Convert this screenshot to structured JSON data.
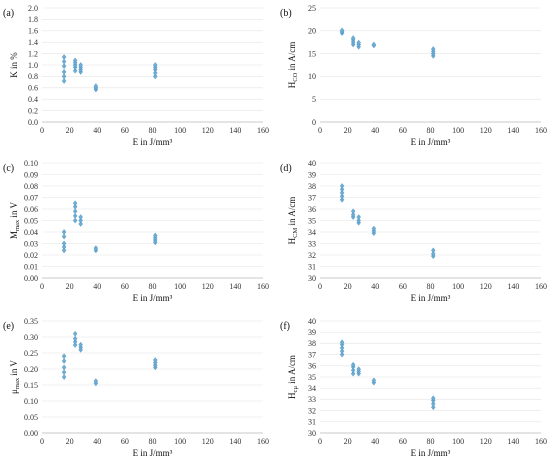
{
  "colors": {
    "marker": "#6baed6",
    "marker_dark": "#3f7fb0",
    "grid": "#e3e3e3"
  },
  "chart_data": [
    {
      "id": "a",
      "type": "scatter",
      "panel_label": "(a)",
      "xlabel": "E in J/mm³",
      "ylabel": [
        {
          "t": "K in %"
        }
      ],
      "xlim": [
        0,
        160
      ],
      "xticks": [
        0,
        20,
        40,
        60,
        80,
        100,
        120,
        140,
        160
      ],
      "xtick_labels": [
        "0",
        "20",
        "40",
        "60",
        "80",
        "100",
        "120",
        "140",
        "160"
      ],
      "ylim": [
        0,
        2.0
      ],
      "yticks": [
        0,
        0.2,
        0.4,
        0.6,
        0.8,
        1.0,
        1.2,
        1.4,
        1.6,
        1.8,
        2.0
      ],
      "ytick_labels": [
        "0.0",
        "0.2",
        "0.4",
        "0.6",
        "0.8",
        "1.0",
        "1.2",
        "1.4",
        "1.6",
        "1.8",
        "2.0"
      ],
      "x": [
        16,
        16,
        16,
        16,
        16,
        16,
        24,
        24,
        24,
        24,
        24,
        28,
        28,
        28,
        28,
        39,
        39,
        39,
        82,
        82,
        82,
        82,
        82
      ],
      "y": [
        0.72,
        0.8,
        0.88,
        0.98,
        1.06,
        1.14,
        0.9,
        0.96,
        1.0,
        1.04,
        1.08,
        0.88,
        0.92,
        0.96,
        1.0,
        0.57,
        0.6,
        0.63,
        0.8,
        0.86,
        0.92,
        0.96,
        1.0
      ]
    },
    {
      "id": "b",
      "type": "scatter",
      "panel_label": "(b)",
      "xlabel": "E in J/mm³",
      "ylabel": [
        {
          "t": "H"
        },
        {
          "t": "CO",
          "sub": true
        },
        {
          "t": " in A/cm"
        }
      ],
      "xlim": [
        0,
        160
      ],
      "xticks": [
        0,
        20,
        40,
        60,
        80,
        100,
        120,
        140,
        160
      ],
      "xtick_labels": [
        "0",
        "20",
        "40",
        "60",
        "80",
        "100",
        "120",
        "140",
        "160"
      ],
      "ylim": [
        0,
        25
      ],
      "yticks": [
        0,
        5,
        10,
        15,
        20,
        25
      ],
      "ytick_labels": [
        "0",
        "5",
        "10",
        "15",
        "20",
        "25"
      ],
      "x": [
        16,
        16,
        16,
        24,
        24,
        24,
        24,
        28,
        28,
        28,
        39,
        39,
        82,
        82,
        82,
        82
      ],
      "y": [
        19.5,
        19.8,
        20.1,
        17.0,
        17.5,
        18.0,
        18.4,
        16.5,
        17.0,
        17.4,
        16.8,
        17.0,
        14.5,
        15.0,
        15.5,
        16.0
      ]
    },
    {
      "id": "c",
      "type": "scatter",
      "panel_label": "(c)",
      "xlabel": "E in J/mm³",
      "ylabel": [
        {
          "t": "M"
        },
        {
          "t": "max",
          "sub": true
        },
        {
          "t": " in V"
        }
      ],
      "xlim": [
        0,
        160
      ],
      "xticks": [
        0,
        20,
        40,
        60,
        80,
        100,
        120,
        140,
        160
      ],
      "xtick_labels": [
        "0",
        "20",
        "40",
        "60",
        "80",
        "100",
        "120",
        "140",
        "160"
      ],
      "ylim": [
        0,
        0.1
      ],
      "yticks": [
        0,
        0.01,
        0.02,
        0.03,
        0.04,
        0.05,
        0.06,
        0.07,
        0.08,
        0.09,
        0.1
      ],
      "ytick_labels": [
        "0.00",
        "0.01",
        "0.02",
        "0.03",
        "0.04",
        "0.05",
        "0.06",
        "0.07",
        "0.08",
        "0.09",
        "0.10"
      ],
      "x": [
        16,
        16,
        16,
        16,
        16,
        24,
        24,
        24,
        24,
        24,
        28,
        28,
        28,
        39,
        39,
        82,
        82,
        82,
        82
      ],
      "y": [
        0.024,
        0.027,
        0.03,
        0.036,
        0.04,
        0.05,
        0.054,
        0.058,
        0.062,
        0.065,
        0.047,
        0.05,
        0.053,
        0.024,
        0.026,
        0.031,
        0.033,
        0.035,
        0.037
      ]
    },
    {
      "id": "d",
      "type": "scatter",
      "panel_label": "(d)",
      "xlabel": "E in J/mm³",
      "ylabel": [
        {
          "t": "H"
        },
        {
          "t": "CM",
          "sub": true
        },
        {
          "t": " in A/cm"
        }
      ],
      "xlim": [
        0,
        160
      ],
      "xticks": [
        0,
        20,
        40,
        60,
        80,
        100,
        120,
        140,
        160
      ],
      "xtick_labels": [
        "0",
        "20",
        "40",
        "60",
        "80",
        "100",
        "120",
        "140",
        "160"
      ],
      "ylim": [
        30,
        40
      ],
      "yticks": [
        30,
        31,
        32,
        33,
        34,
        35,
        36,
        37,
        38,
        39,
        40
      ],
      "ytick_labels": [
        "30",
        "31",
        "32",
        "33",
        "34",
        "35",
        "36",
        "37",
        "38",
        "39",
        "40"
      ],
      "x": [
        16,
        16,
        16,
        16,
        16,
        24,
        24,
        24,
        28,
        28,
        28,
        39,
        39,
        39,
        82,
        82,
        82
      ],
      "y": [
        36.8,
        37.1,
        37.4,
        37.7,
        38.0,
        35.3,
        35.5,
        35.8,
        34.8,
        35.0,
        35.3,
        33.9,
        34.1,
        34.3,
        31.9,
        32.1,
        32.4
      ]
    },
    {
      "id": "e",
      "type": "scatter",
      "panel_label": "(e)",
      "xlabel": "E in J/mm³",
      "ylabel": [
        {
          "t": "μ"
        },
        {
          "t": "max",
          "sub": true
        },
        {
          "t": " in V"
        }
      ],
      "xlim": [
        0,
        160
      ],
      "xticks": [
        0,
        20,
        40,
        60,
        80,
        100,
        120,
        140,
        160
      ],
      "xtick_labels": [
        "0",
        "20",
        "40",
        "60",
        "80",
        "100",
        "120",
        "140",
        "160"
      ],
      "ylim": [
        0,
        0.35
      ],
      "yticks": [
        0,
        0.05,
        0.1,
        0.15,
        0.2,
        0.25,
        0.3,
        0.35
      ],
      "ytick_labels": [
        "0.00",
        "0.05",
        "0.10",
        "0.15",
        "0.20",
        "0.25",
        "0.30",
        "0.35"
      ],
      "x": [
        16,
        16,
        16,
        16,
        16,
        24,
        24,
        24,
        24,
        28,
        28,
        28,
        39,
        39,
        82,
        82,
        82,
        82
      ],
      "y": [
        0.175,
        0.19,
        0.205,
        0.225,
        0.24,
        0.275,
        0.285,
        0.295,
        0.31,
        0.26,
        0.268,
        0.276,
        0.155,
        0.162,
        0.205,
        0.212,
        0.22,
        0.228
      ]
    },
    {
      "id": "f",
      "type": "scatter",
      "panel_label": "(f)",
      "xlabel": "E in J/mm³",
      "ylabel": [
        {
          "t": "H"
        },
        {
          "t": "cμ",
          "sub": true
        },
        {
          "t": " in A/cm"
        }
      ],
      "xlim": [
        0,
        160
      ],
      "xticks": [
        0,
        20,
        40,
        60,
        80,
        100,
        120,
        140,
        160
      ],
      "xtick_labels": [
        "0",
        "20",
        "40",
        "60",
        "80",
        "100",
        "120",
        "140",
        "160"
      ],
      "ylim": [
        30,
        40
      ],
      "yticks": [
        30,
        31,
        32,
        33,
        34,
        35,
        36,
        37,
        38,
        39,
        40
      ],
      "ytick_labels": [
        "30",
        "31",
        "32",
        "33",
        "34",
        "35",
        "36",
        "37",
        "38",
        "39",
        "40"
      ],
      "x": [
        16,
        16,
        16,
        16,
        16,
        24,
        24,
        24,
        24,
        28,
        28,
        28,
        39,
        39,
        82,
        82,
        82,
        82
      ],
      "y": [
        37.0,
        37.3,
        37.6,
        37.9,
        38.1,
        35.3,
        35.6,
        35.9,
        36.1,
        35.3,
        35.5,
        35.7,
        34.5,
        34.7,
        32.3,
        32.6,
        32.9,
        33.1
      ]
    }
  ]
}
